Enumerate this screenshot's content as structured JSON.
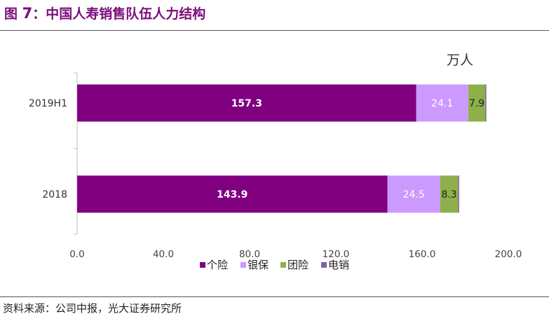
{
  "header": {
    "title_prefix": "图",
    "title_number": "7",
    "title_text": "：中国人寿销售队伍人力结构"
  },
  "footer": {
    "source": "资料来源：公司中报，光大证券研究所"
  },
  "chart_data": {
    "type": "bar",
    "orientation": "horizontal",
    "stacked": true,
    "unit": "万人",
    "categories": [
      "2019H1",
      "2018"
    ],
    "series": [
      {
        "name": "个险",
        "color": "#800080",
        "values": [
          157.3,
          143.9
        ],
        "labels": [
          "157.3",
          "143.9"
        ],
        "label_color": "#ffffff",
        "label_bold": true
      },
      {
        "name": "银保",
        "color": "#cc99ff",
        "values": [
          24.1,
          24.5
        ],
        "labels": [
          "24.1",
          "24.5"
        ],
        "label_color": "#ffffff",
        "label_bold": false
      },
      {
        "name": "团险",
        "color": "#8db04a",
        "values": [
          7.9,
          8.3
        ],
        "labels": [
          "7.9",
          "8.3"
        ],
        "label_color": "#222222",
        "label_bold": false
      },
      {
        "name": "电销",
        "color": "#7f64a3",
        "values": [
          0.5,
          0.5
        ],
        "labels": [
          "",
          ""
        ],
        "label_color": "#222222",
        "label_bold": false
      }
    ],
    "xlim": [
      0,
      200
    ],
    "xticks": [
      "0.0",
      "40.0",
      "80.0",
      "120.0",
      "160.0",
      "200.0"
    ],
    "grid": false,
    "legend_position": "bottom"
  }
}
